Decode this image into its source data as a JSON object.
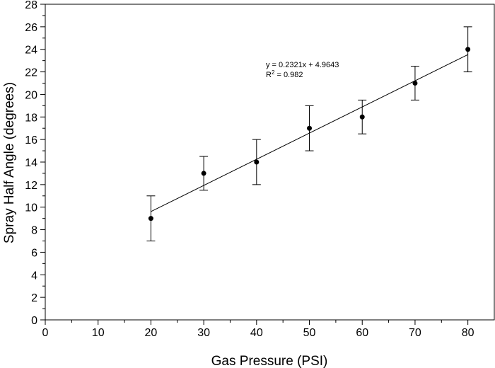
{
  "chart_data": {
    "type": "scatter",
    "title": "",
    "xlabel": "Gas Pressure (PSI)",
    "ylabel": "Spray Half Angle (degrees)",
    "xlim": [
      0,
      85
    ],
    "ylim": [
      0,
      28
    ],
    "x_ticks": [
      0,
      10,
      20,
      30,
      40,
      50,
      60,
      70,
      80
    ],
    "y_ticks": [
      0,
      2,
      4,
      6,
      8,
      10,
      12,
      14,
      16,
      18,
      20,
      22,
      24,
      26,
      28
    ],
    "x_minor_step": 5,
    "y_minor_step": 1,
    "series": [
      {
        "name": "Spray Half Angle",
        "points": [
          {
            "x": 20,
            "y": 9,
            "err_low": 7,
            "err_high": 11
          },
          {
            "x": 30,
            "y": 13,
            "err_low": 11.5,
            "err_high": 14.5
          },
          {
            "x": 40,
            "y": 14,
            "err_low": 12,
            "err_high": 16
          },
          {
            "x": 50,
            "y": 17,
            "err_low": 15,
            "err_high": 19
          },
          {
            "x": 60,
            "y": 18,
            "err_low": 16.5,
            "err_high": 19.5
          },
          {
            "x": 70,
            "y": 21,
            "err_low": 19.5,
            "err_high": 22.5
          },
          {
            "x": 80,
            "y": 24,
            "err_low": 22,
            "err_high": 26
          }
        ]
      }
    ],
    "trendline": {
      "slope": 0.2321,
      "intercept": 4.9643,
      "x_range": [
        20,
        80
      ],
      "equation_text": "y = 0.2321x + 4.9643",
      "r2_label": "R",
      "r2_sup": "2",
      "r2_value_text": " = 0.982"
    }
  }
}
